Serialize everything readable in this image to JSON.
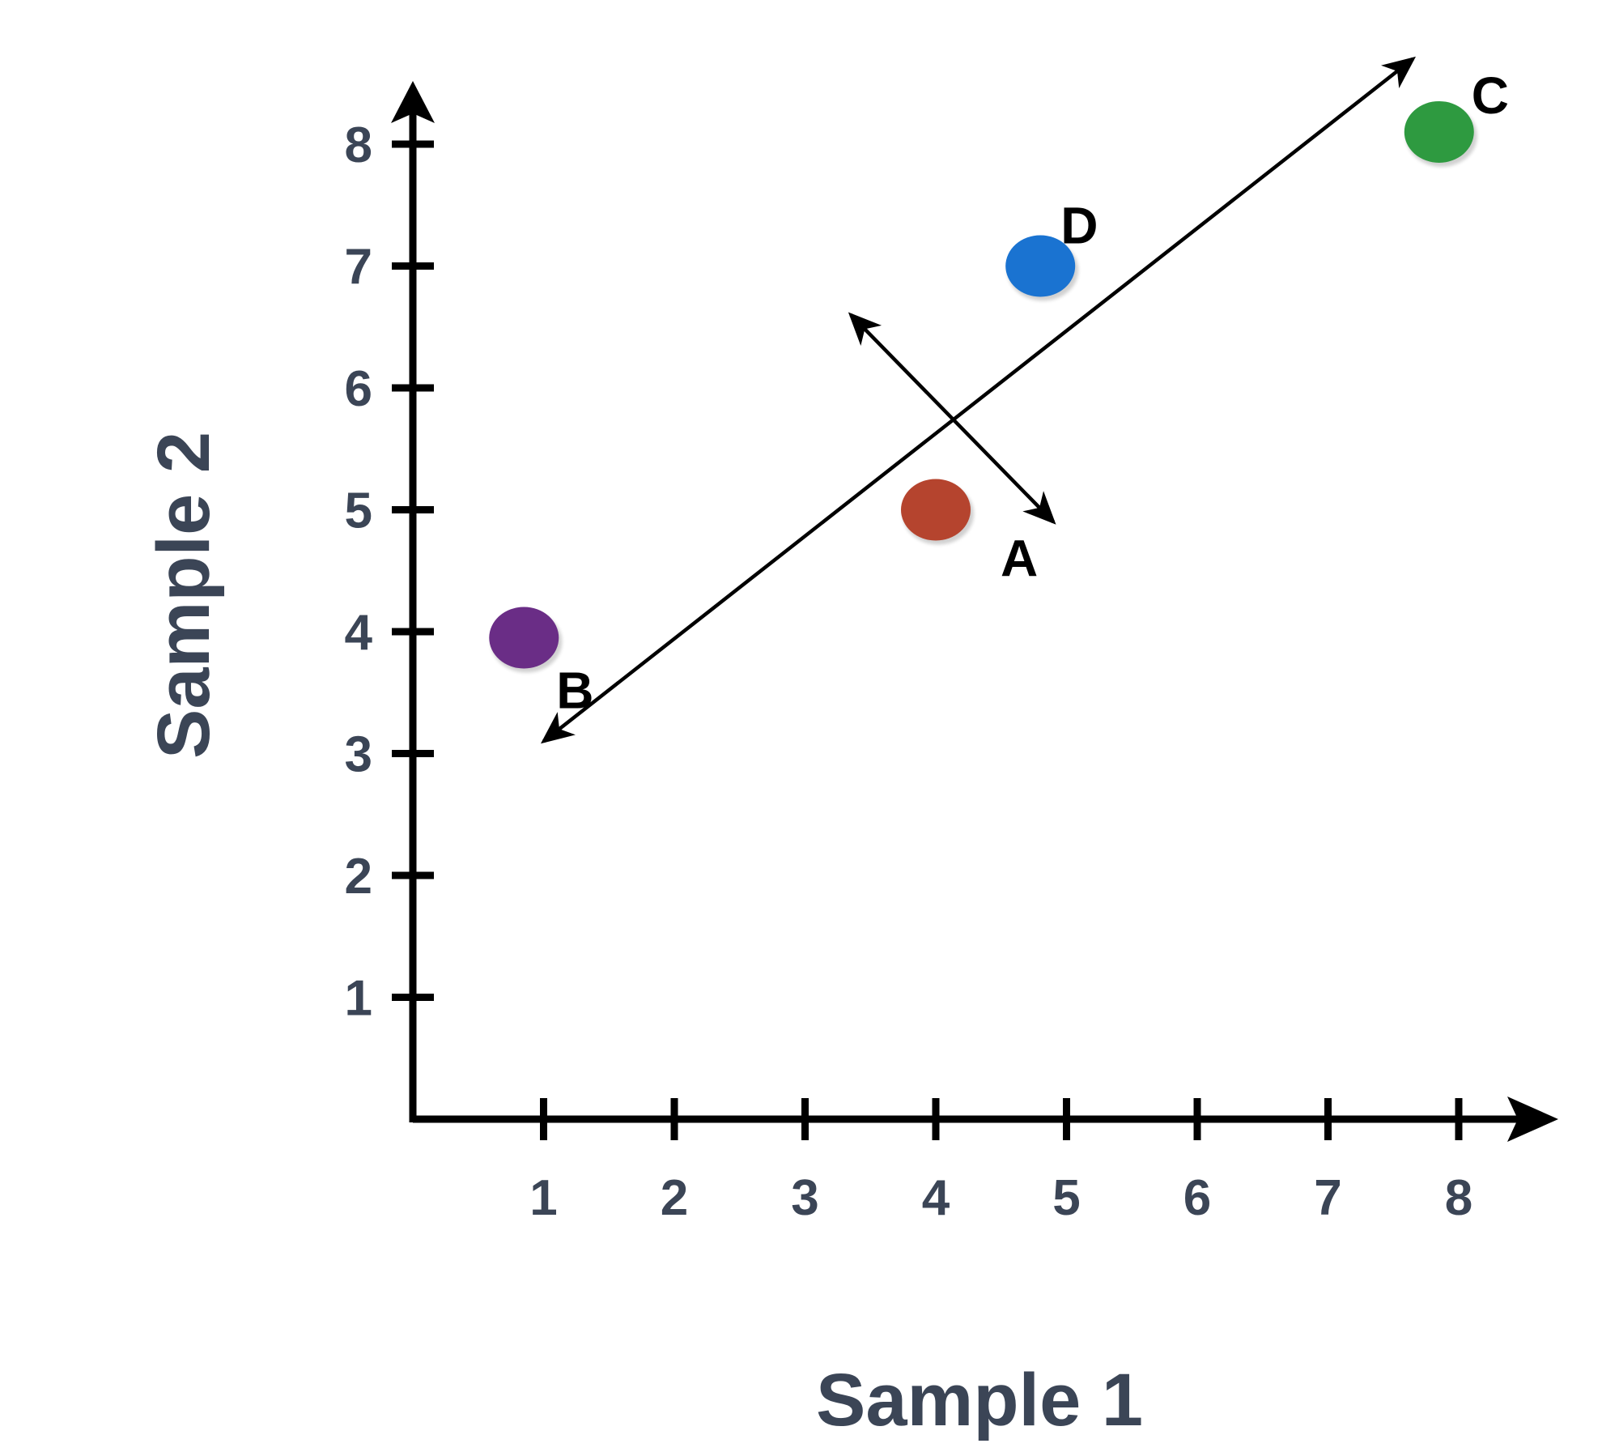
{
  "chart_data": {
    "type": "scatter",
    "xlabel": "Sample 1",
    "ylabel": "Sample 2",
    "x_ticks": [
      1,
      2,
      3,
      4,
      5,
      6,
      7,
      8
    ],
    "y_ticks": [
      1,
      2,
      3,
      4,
      5,
      6,
      7,
      8
    ],
    "xlim": [
      0,
      8.8
    ],
    "ylim": [
      0,
      8.5
    ],
    "grid": false,
    "points": [
      {
        "label": "A",
        "x": 4.0,
        "y": 5.0,
        "color": "#b5442e"
      },
      {
        "label": "B",
        "x": 0.85,
        "y": 3.95,
        "color": "#6a2d86"
      },
      {
        "label": "C",
        "x": 7.85,
        "y": 8.1,
        "color": "#2e9a40"
      },
      {
        "label": "D",
        "x": 4.8,
        "y": 7.0,
        "color": "#1a73d1"
      }
    ],
    "arrows": [
      {
        "from": [
          1.0,
          3.1
        ],
        "to": [
          7.65,
          8.7
        ],
        "double_headed": true
      },
      {
        "from": [
          3.35,
          6.6
        ],
        "to": [
          4.9,
          4.9
        ],
        "double_headed": true
      }
    ],
    "colors": {
      "axis": "#000000",
      "tick_label": "#3b4556",
      "axis_title": "#3b4556",
      "point_label": "#000000"
    }
  }
}
